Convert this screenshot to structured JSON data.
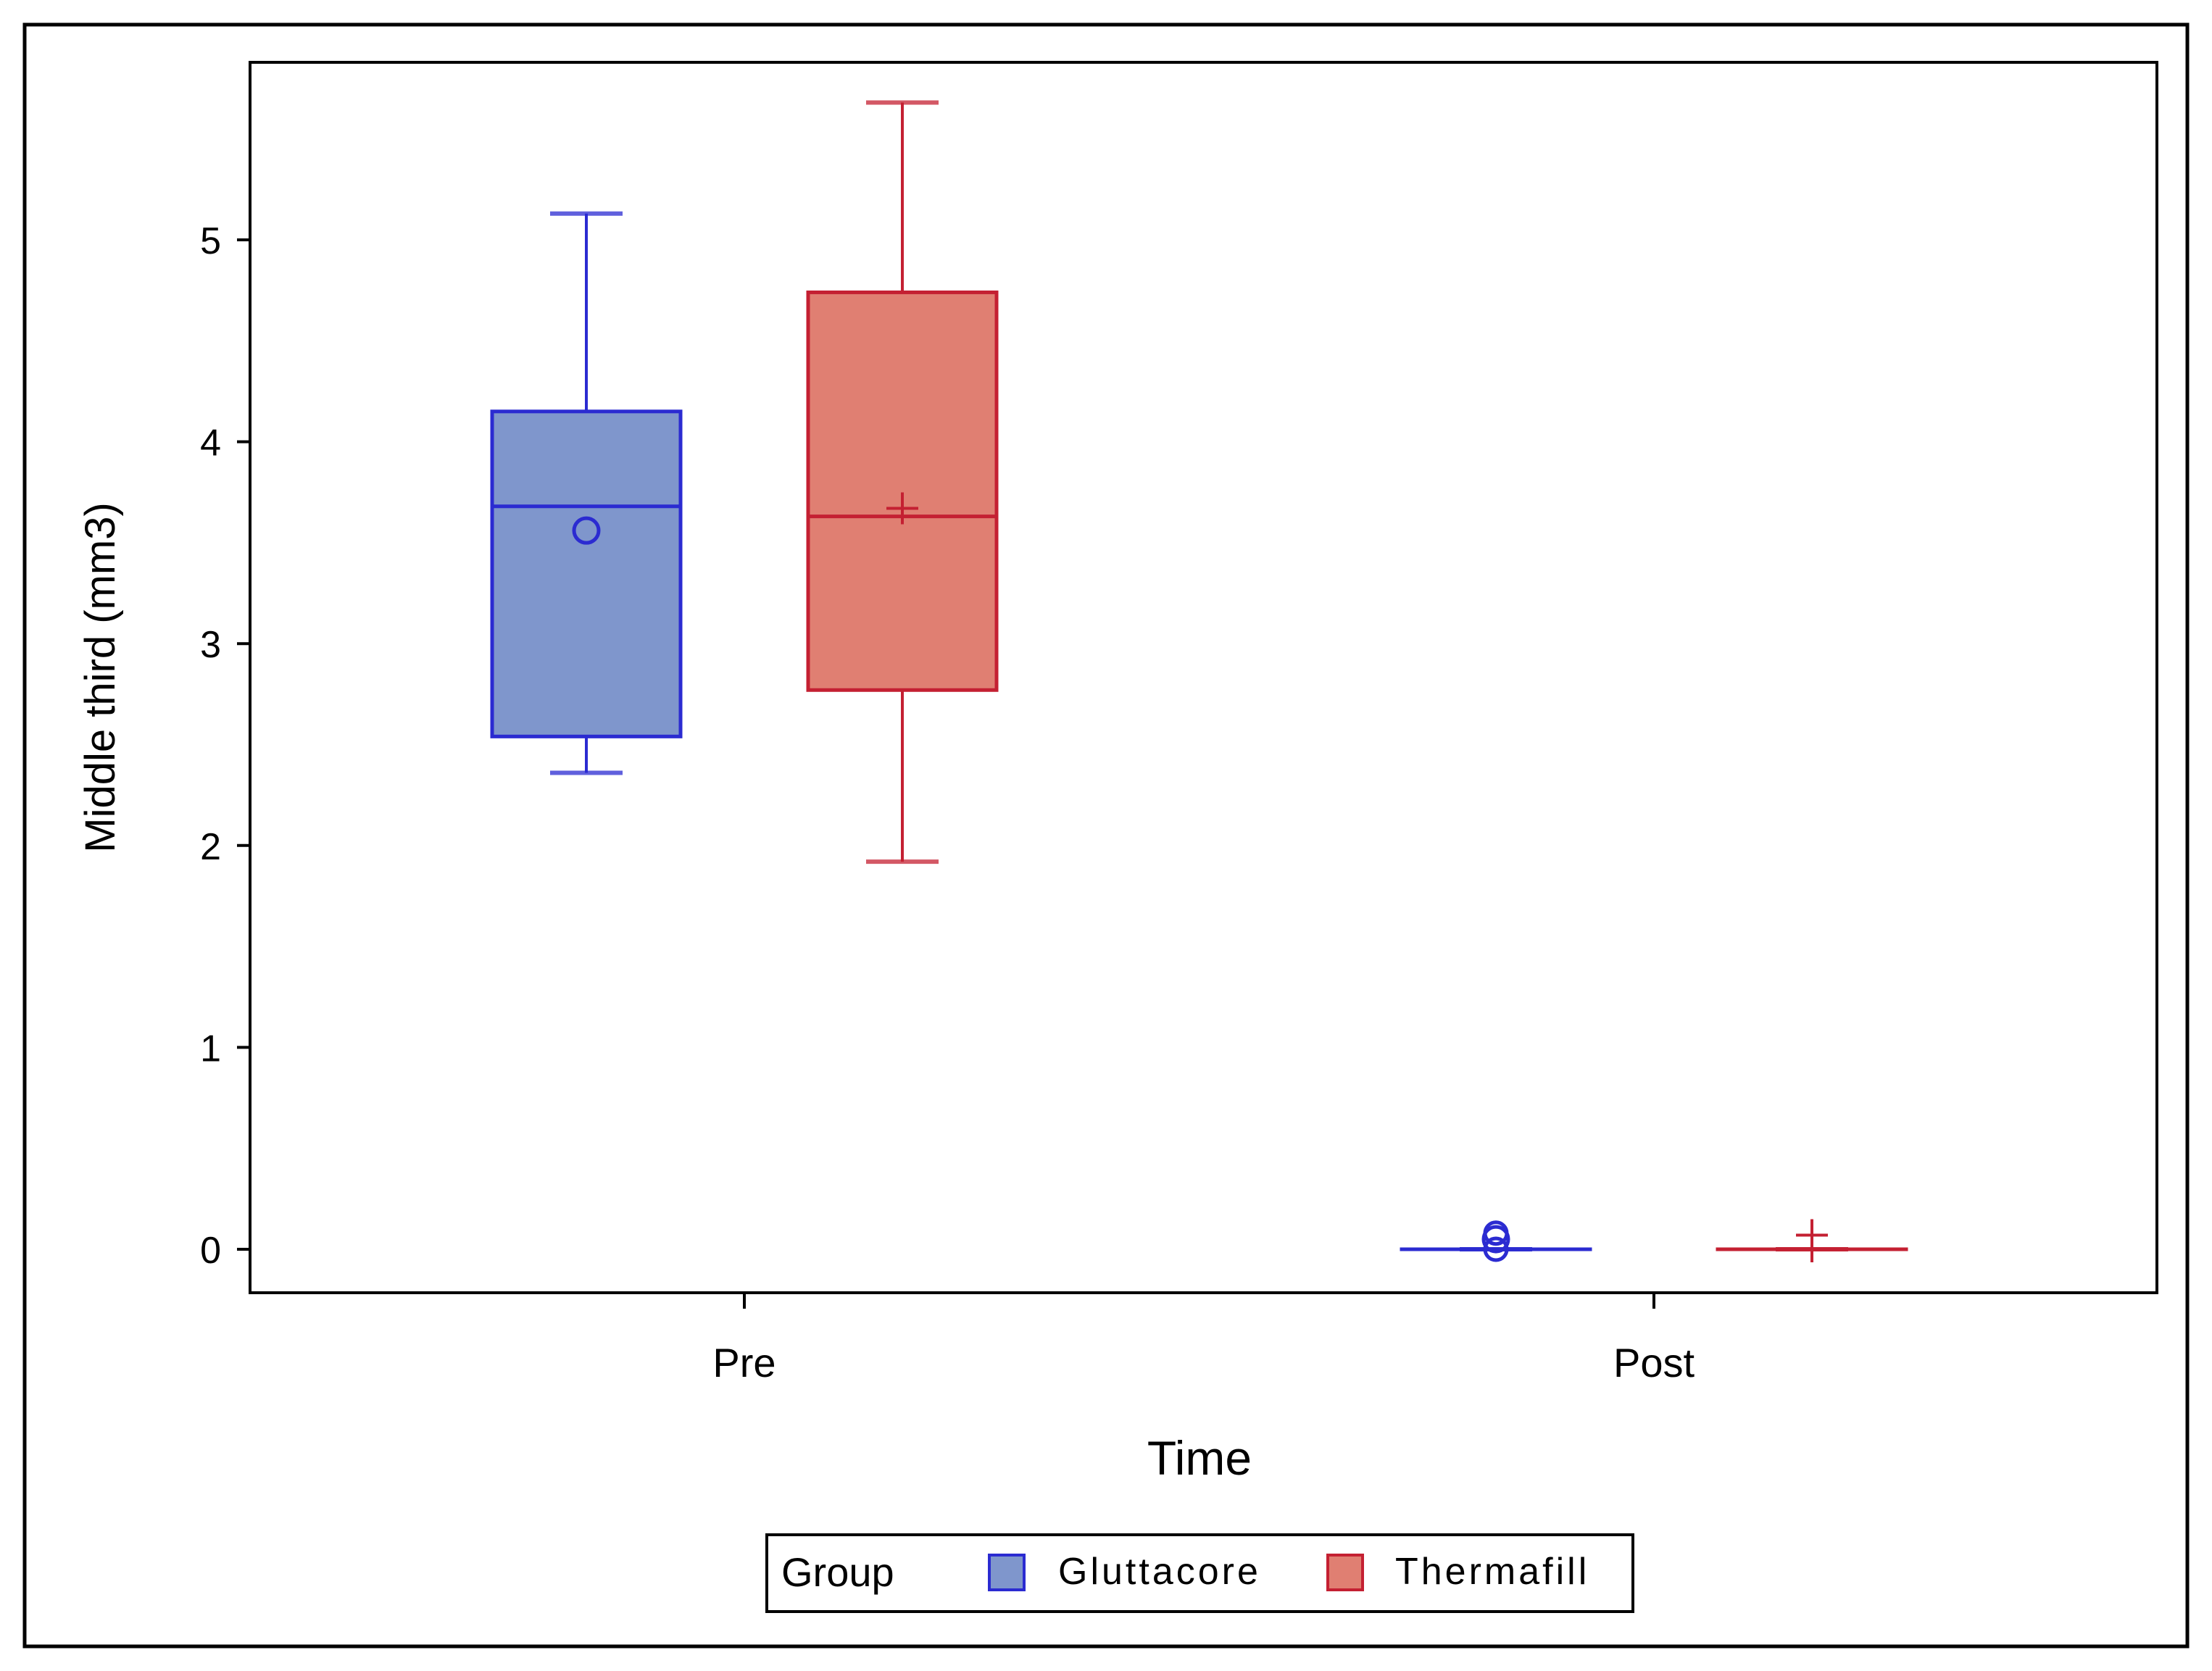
{
  "chart_data": {
    "type": "box",
    "xlabel": "Time",
    "ylabel": "Middle third (mm3)",
    "ylim": [
      -0.2,
      5.9
    ],
    "yticks": [
      0,
      1,
      2,
      3,
      4,
      5
    ],
    "categories": [
      "Pre",
      "Post"
    ],
    "legend": {
      "title": "Group",
      "placement": "bottom-center",
      "entries": [
        "Gluttacore",
        "Thermafill"
      ]
    },
    "series": [
      {
        "name": "Gluttacore",
        "color": "#2b2bd1",
        "fill": "#7f96cc",
        "mean_marker": "circle",
        "boxes": [
          {
            "category": "Pre",
            "min": 2.36,
            "q1": 2.54,
            "median": 3.68,
            "q3": 4.15,
            "max": 5.13,
            "mean": 3.56
          },
          {
            "category": "Post",
            "min": 0.0,
            "q1": 0.0,
            "median": 0.0,
            "q3": 0.0,
            "max": 0.0,
            "mean": 0.05,
            "outliers": [
              0.08,
              0.0
            ]
          }
        ]
      },
      {
        "name": "Thermafill",
        "color": "#c42032",
        "fill": "#e07f72",
        "mean_marker": "plus",
        "boxes": [
          {
            "category": "Pre",
            "min": 1.92,
            "q1": 2.77,
            "median": 3.63,
            "q3": 4.74,
            "max": 5.68,
            "mean": 3.67
          },
          {
            "category": "Post",
            "min": 0.0,
            "q1": 0.0,
            "median": 0.0,
            "q3": 0.0,
            "max": 0.0,
            "mean": 0.07,
            "outliers": [
              0.0
            ]
          }
        ]
      }
    ]
  }
}
